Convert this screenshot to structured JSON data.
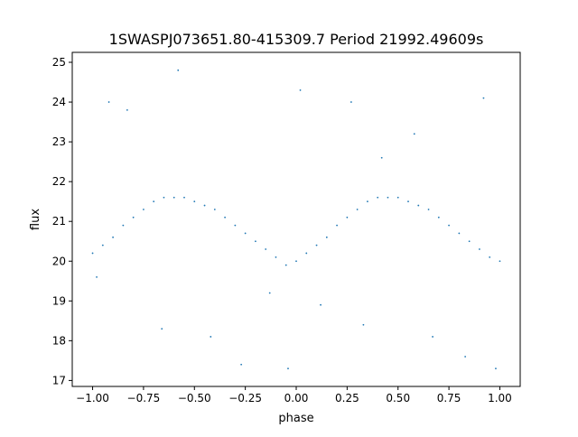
{
  "chart_data": {
    "type": "scatter",
    "title": "1SWASPJ073651.80-415309.7 Period 21992.49609s",
    "xlabel": "phase",
    "ylabel": "flux",
    "xlim": [
      -1.1,
      1.1
    ],
    "ylim": [
      16.85,
      25.25
    ],
    "x_ticks": [
      -1.0,
      -0.75,
      -0.5,
      -0.25,
      0.0,
      0.25,
      0.5,
      0.75,
      1.0
    ],
    "x_tick_labels": [
      "−1.00",
      "−0.75",
      "−0.50",
      "−0.25",
      "0.00",
      "0.25",
      "0.50",
      "0.75",
      "1.00"
    ],
    "y_ticks": [
      17,
      18,
      19,
      20,
      21,
      22,
      23,
      24,
      25
    ],
    "y_tick_labels": [
      "17",
      "18",
      "19",
      "20",
      "21",
      "22",
      "23",
      "24",
      "25"
    ],
    "grid": false,
    "legend": "none",
    "marker_color": "#1f77b4",
    "series": [
      {
        "x": [
          -1.0,
          -0.95,
          -0.9,
          -0.85,
          -0.8,
          -0.75,
          -0.7,
          -0.65,
          -0.6,
          -0.55,
          -0.5,
          -0.45,
          -0.4,
          -0.35,
          -0.3,
          -0.25,
          -0.2,
          -0.15,
          -0.1,
          -0.05,
          0.0,
          0.05,
          0.1,
          0.15,
          0.2,
          0.25,
          0.3,
          0.35,
          0.4,
          0.45,
          0.5,
          0.55,
          0.6,
          0.65,
          0.7,
          0.75,
          0.8,
          0.85,
          0.9,
          0.95,
          1.0,
          -0.98,
          -0.92,
          -0.83,
          -0.66,
          -0.58,
          -0.42,
          -0.27,
          -0.13,
          -0.04,
          0.02,
          0.12,
          0.27,
          0.33,
          0.42,
          0.58,
          0.67,
          0.83,
          0.92,
          0.98
        ],
        "y": [
          20.2,
          20.4,
          20.6,
          20.9,
          21.1,
          21.3,
          21.5,
          21.6,
          21.6,
          21.6,
          21.5,
          21.4,
          21.3,
          21.1,
          20.9,
          20.7,
          20.5,
          20.3,
          20.1,
          19.9,
          20.0,
          20.2,
          20.4,
          20.6,
          20.9,
          21.1,
          21.3,
          21.5,
          21.6,
          21.6,
          21.6,
          21.5,
          21.4,
          21.3,
          21.1,
          20.9,
          20.7,
          20.5,
          20.3,
          20.1,
          20.0,
          19.6,
          24.0,
          23.8,
          18.3,
          24.8,
          18.1,
          17.4,
          19.2,
          17.3,
          24.3,
          18.9,
          24.0,
          18.4,
          22.6,
          23.2,
          18.1,
          17.6,
          24.1,
          17.3
        ]
      }
    ]
  }
}
